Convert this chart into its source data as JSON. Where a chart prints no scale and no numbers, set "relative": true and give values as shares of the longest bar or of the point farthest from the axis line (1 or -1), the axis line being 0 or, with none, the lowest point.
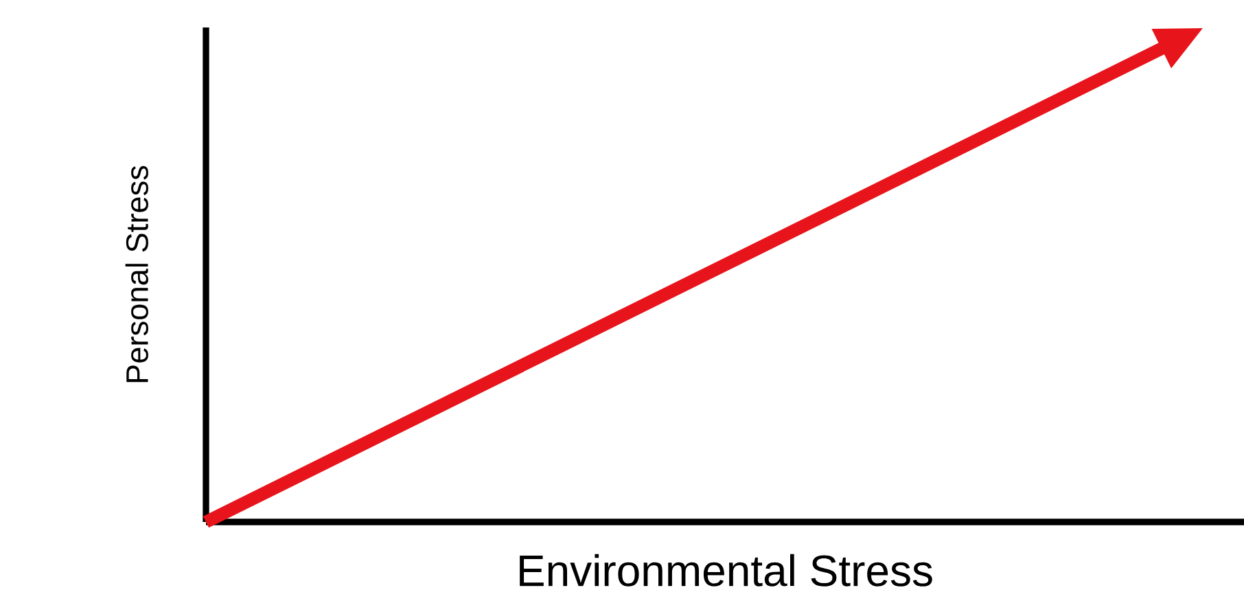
{
  "chart_data": {
    "type": "line",
    "xlabel": "Environmental Stress",
    "ylabel": "Personal Stress",
    "relative": true,
    "categories": [
      null,
      null
    ],
    "series": [
      {
        "color": "#e8141b",
        "values": [
          0,
          1
        ]
      }
    ],
    "ref_lines": [
      {
        "axis": "y",
        "value": 0,
        "color": "#000000"
      }
    ]
  }
}
